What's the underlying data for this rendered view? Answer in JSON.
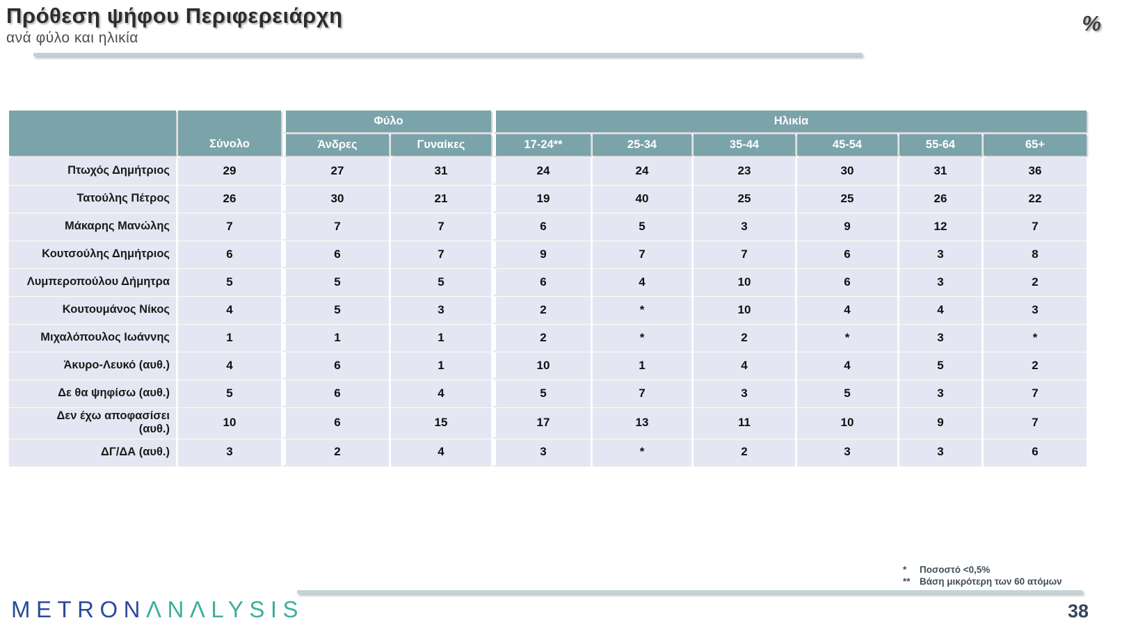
{
  "slide": {
    "title": "Πρόθεση ψήφου Περιφερειάρχη",
    "subtitle": "ανά φύλο και ηλικία",
    "unit_symbol": "%",
    "page_number": "38"
  },
  "footnotes": [
    {
      "marker": "*",
      "text": "Ποσοστό <0,5%"
    },
    {
      "marker": "**",
      "text": "Βάση μικρότερη των 60 ατόμων"
    }
  ],
  "logo": {
    "metron": "METRON",
    "analysis": "ΛNΛLYSIS"
  },
  "colors": {
    "header_teal": "#7aa3aa",
    "row_background": "#e4e7f3",
    "accent_rule": "#c1d4d9",
    "logo_blue": "#2b4a9b",
    "logo_teal": "#3fae9b",
    "page_number": "#32475a"
  },
  "chart_data": {
    "type": "table",
    "title": "Πρόθεση ψήφου Περιφερειάρχη",
    "subtitle": "ανά φύλο και ηλικία",
    "unit": "%",
    "header": {
      "total_label": "Σύνολο",
      "groups": [
        {
          "label": "Φύλο",
          "cols": [
            "Άνδρες",
            "Γυναίκες"
          ]
        },
        {
          "label": "Ηλικία",
          "cols": [
            "17-24**",
            "25-34",
            "35-44",
            "45-54",
            "55-64",
            "65+"
          ]
        }
      ]
    },
    "rows": [
      {
        "label": "Πτωχός Δημήτριος",
        "values": [
          "29",
          "27",
          "31",
          "24",
          "24",
          "23",
          "30",
          "31",
          "36"
        ]
      },
      {
        "label": "Τατούλης Πέτρος",
        "values": [
          "26",
          "30",
          "21",
          "19",
          "40",
          "25",
          "25",
          "26",
          "22"
        ]
      },
      {
        "label": "Μάκαρης Μανώλης",
        "values": [
          "7",
          "7",
          "7",
          "6",
          "5",
          "3",
          "9",
          "12",
          "7"
        ]
      },
      {
        "label": "Κουτσούλης Δημήτριος",
        "values": [
          "6",
          "6",
          "7",
          "9",
          "7",
          "7",
          "6",
          "3",
          "8"
        ]
      },
      {
        "label": "Λυμπεροπούλου Δήμητρα",
        "values": [
          "5",
          "5",
          "5",
          "6",
          "4",
          "10",
          "6",
          "3",
          "2"
        ]
      },
      {
        "label": "Κουτουμάνος Νίκος",
        "values": [
          "4",
          "5",
          "3",
          "2",
          "*",
          "10",
          "4",
          "4",
          "3"
        ]
      },
      {
        "label": "Μιχαλόπουλος Ιωάννης",
        "values": [
          "1",
          "1",
          "1",
          "2",
          "*",
          "2",
          "*",
          "3",
          "*"
        ]
      },
      {
        "label": "Άκυρο-Λευκό (αυθ.)",
        "values": [
          "4",
          "6",
          "1",
          "10",
          "1",
          "4",
          "4",
          "5",
          "2"
        ]
      },
      {
        "label": "Δε θα ψηφίσω (αυθ.)",
        "values": [
          "5",
          "6",
          "4",
          "5",
          "7",
          "3",
          "5",
          "3",
          "7"
        ]
      },
      {
        "label": "Δεν έχω αποφασίσει (αυθ.)",
        "label_lines": [
          "Δεν έχω αποφασίσει",
          "(αυθ.)"
        ],
        "values": [
          "10",
          "6",
          "15",
          "17",
          "13",
          "11",
          "10",
          "9",
          "7"
        ]
      },
      {
        "label": "ΔΓ/ΔΑ (αυθ.)",
        "values": [
          "3",
          "2",
          "4",
          "3",
          "*",
          "2",
          "3",
          "3",
          "6"
        ]
      }
    ]
  }
}
